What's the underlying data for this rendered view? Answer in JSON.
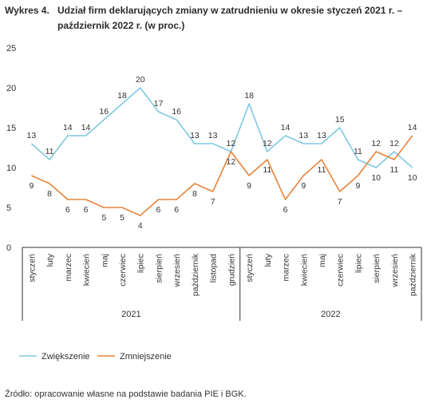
{
  "title": {
    "number": "Wykres 4.",
    "text_line1": "Udział firm deklarujących zmiany w zatrudnieniu w okresie styczeń 2021 r. –",
    "text_line2": "październik 2022 r. (w proc.)"
  },
  "source": "Źródło: opracowanie własne na podstawie badania PIE i BGK.",
  "colors": {
    "increase": "#7ec8e3",
    "decrease": "#e8833a",
    "axis": "#333333"
  },
  "chart_data": {
    "type": "line",
    "categories": [
      "styczeń",
      "luty",
      "marzec",
      "kwiecień",
      "maj",
      "czerwiec",
      "lipiec",
      "sierpień",
      "wrzesień",
      "październik",
      "listopad",
      "grudzień",
      "styczeń",
      "luty",
      "marzec",
      "kwiecień",
      "maj",
      "czerwiec",
      "lipiec",
      "sierpień",
      "wrzesień",
      "październik"
    ],
    "groups": [
      {
        "label": "2021",
        "count": 12
      },
      {
        "label": "2022",
        "count": 10
      }
    ],
    "series": [
      {
        "name": "Zwiększenie",
        "values": [
          13,
          11,
          14,
          14,
          16,
          18,
          20,
          17,
          16,
          13,
          13,
          12,
          18,
          12,
          14,
          13,
          13,
          15,
          11,
          10,
          12,
          10
        ]
      },
      {
        "name": "Zmniejszenie",
        "values": [
          9,
          8,
          6,
          6,
          5,
          5,
          4,
          6,
          6,
          8,
          7,
          12,
          9,
          11,
          6,
          9,
          11,
          7,
          9,
          12,
          11,
          14
        ]
      }
    ],
    "y_ticks": [
      0,
      5,
      10,
      15,
      20,
      25
    ],
    "ylim": [
      0,
      25
    ],
    "grid": false,
    "legend": "bottom-left"
  }
}
